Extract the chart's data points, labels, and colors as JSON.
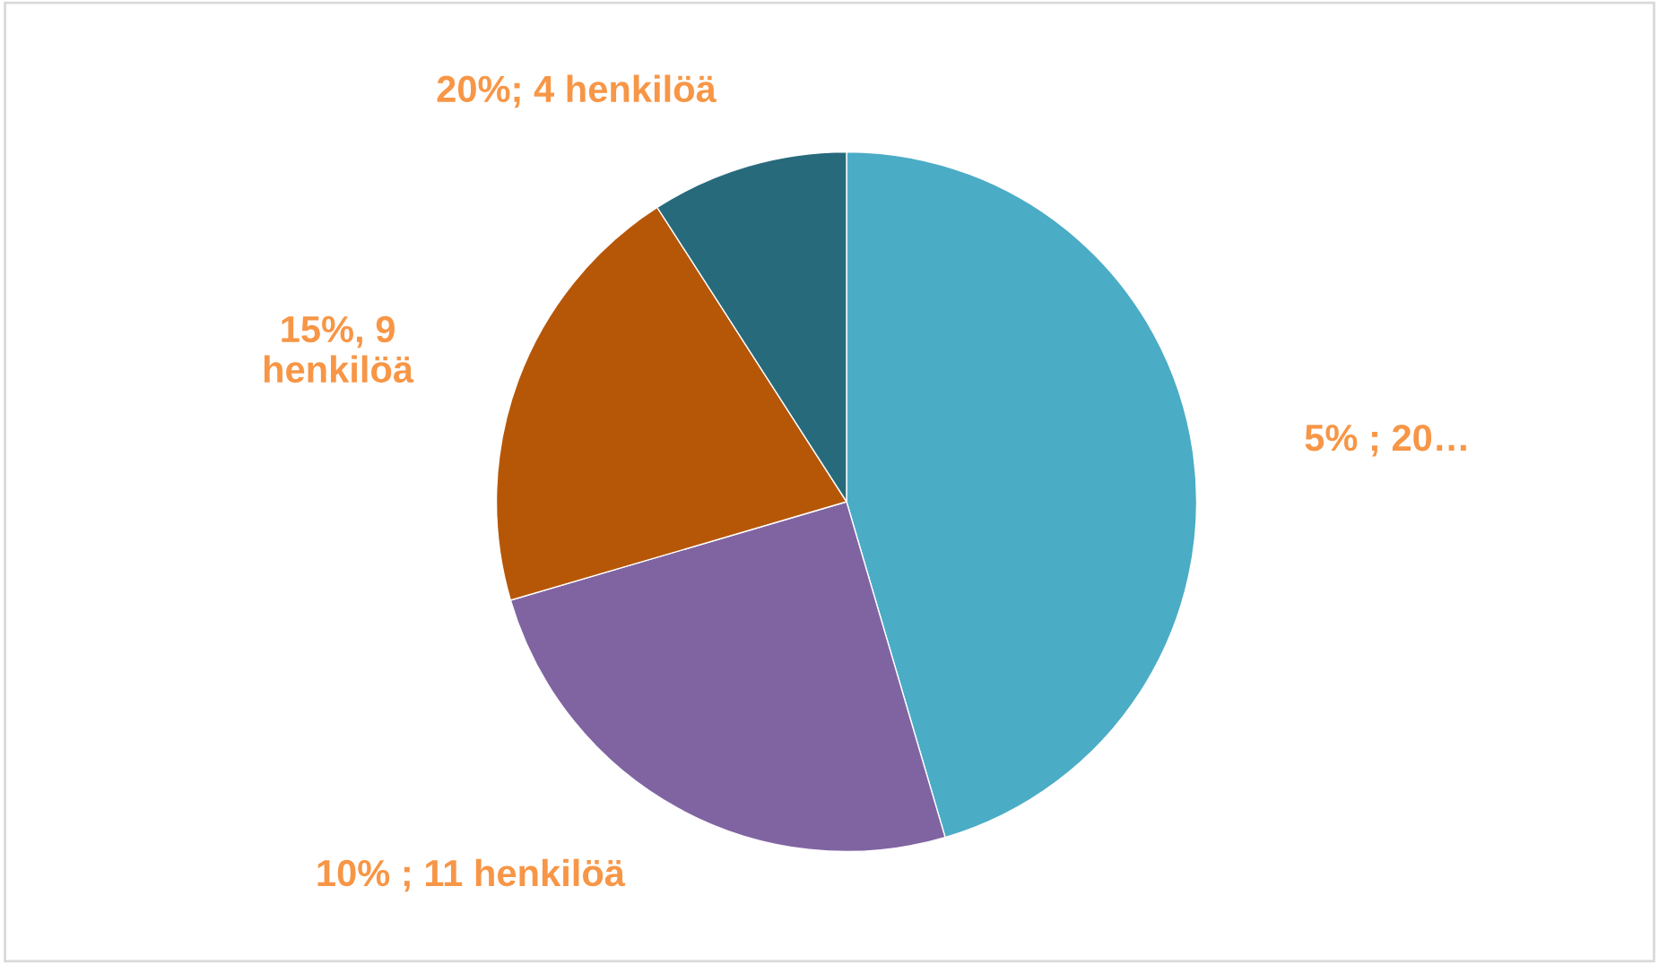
{
  "chart_data": {
    "type": "pie",
    "categories": [
      null,
      null,
      null,
      null
    ],
    "values": [
      20,
      11,
      9,
      4
    ],
    "colors": [
      "#4bacc6",
      "#8064a2",
      "#b65708",
      "#276a7c"
    ],
    "value_labels": [
      "5% ; 20…",
      "10% ; 11 henkilöä",
      "15%, 9\nhenkilöä",
      "20%; 4 henkilöä"
    ],
    "legend": false
  }
}
